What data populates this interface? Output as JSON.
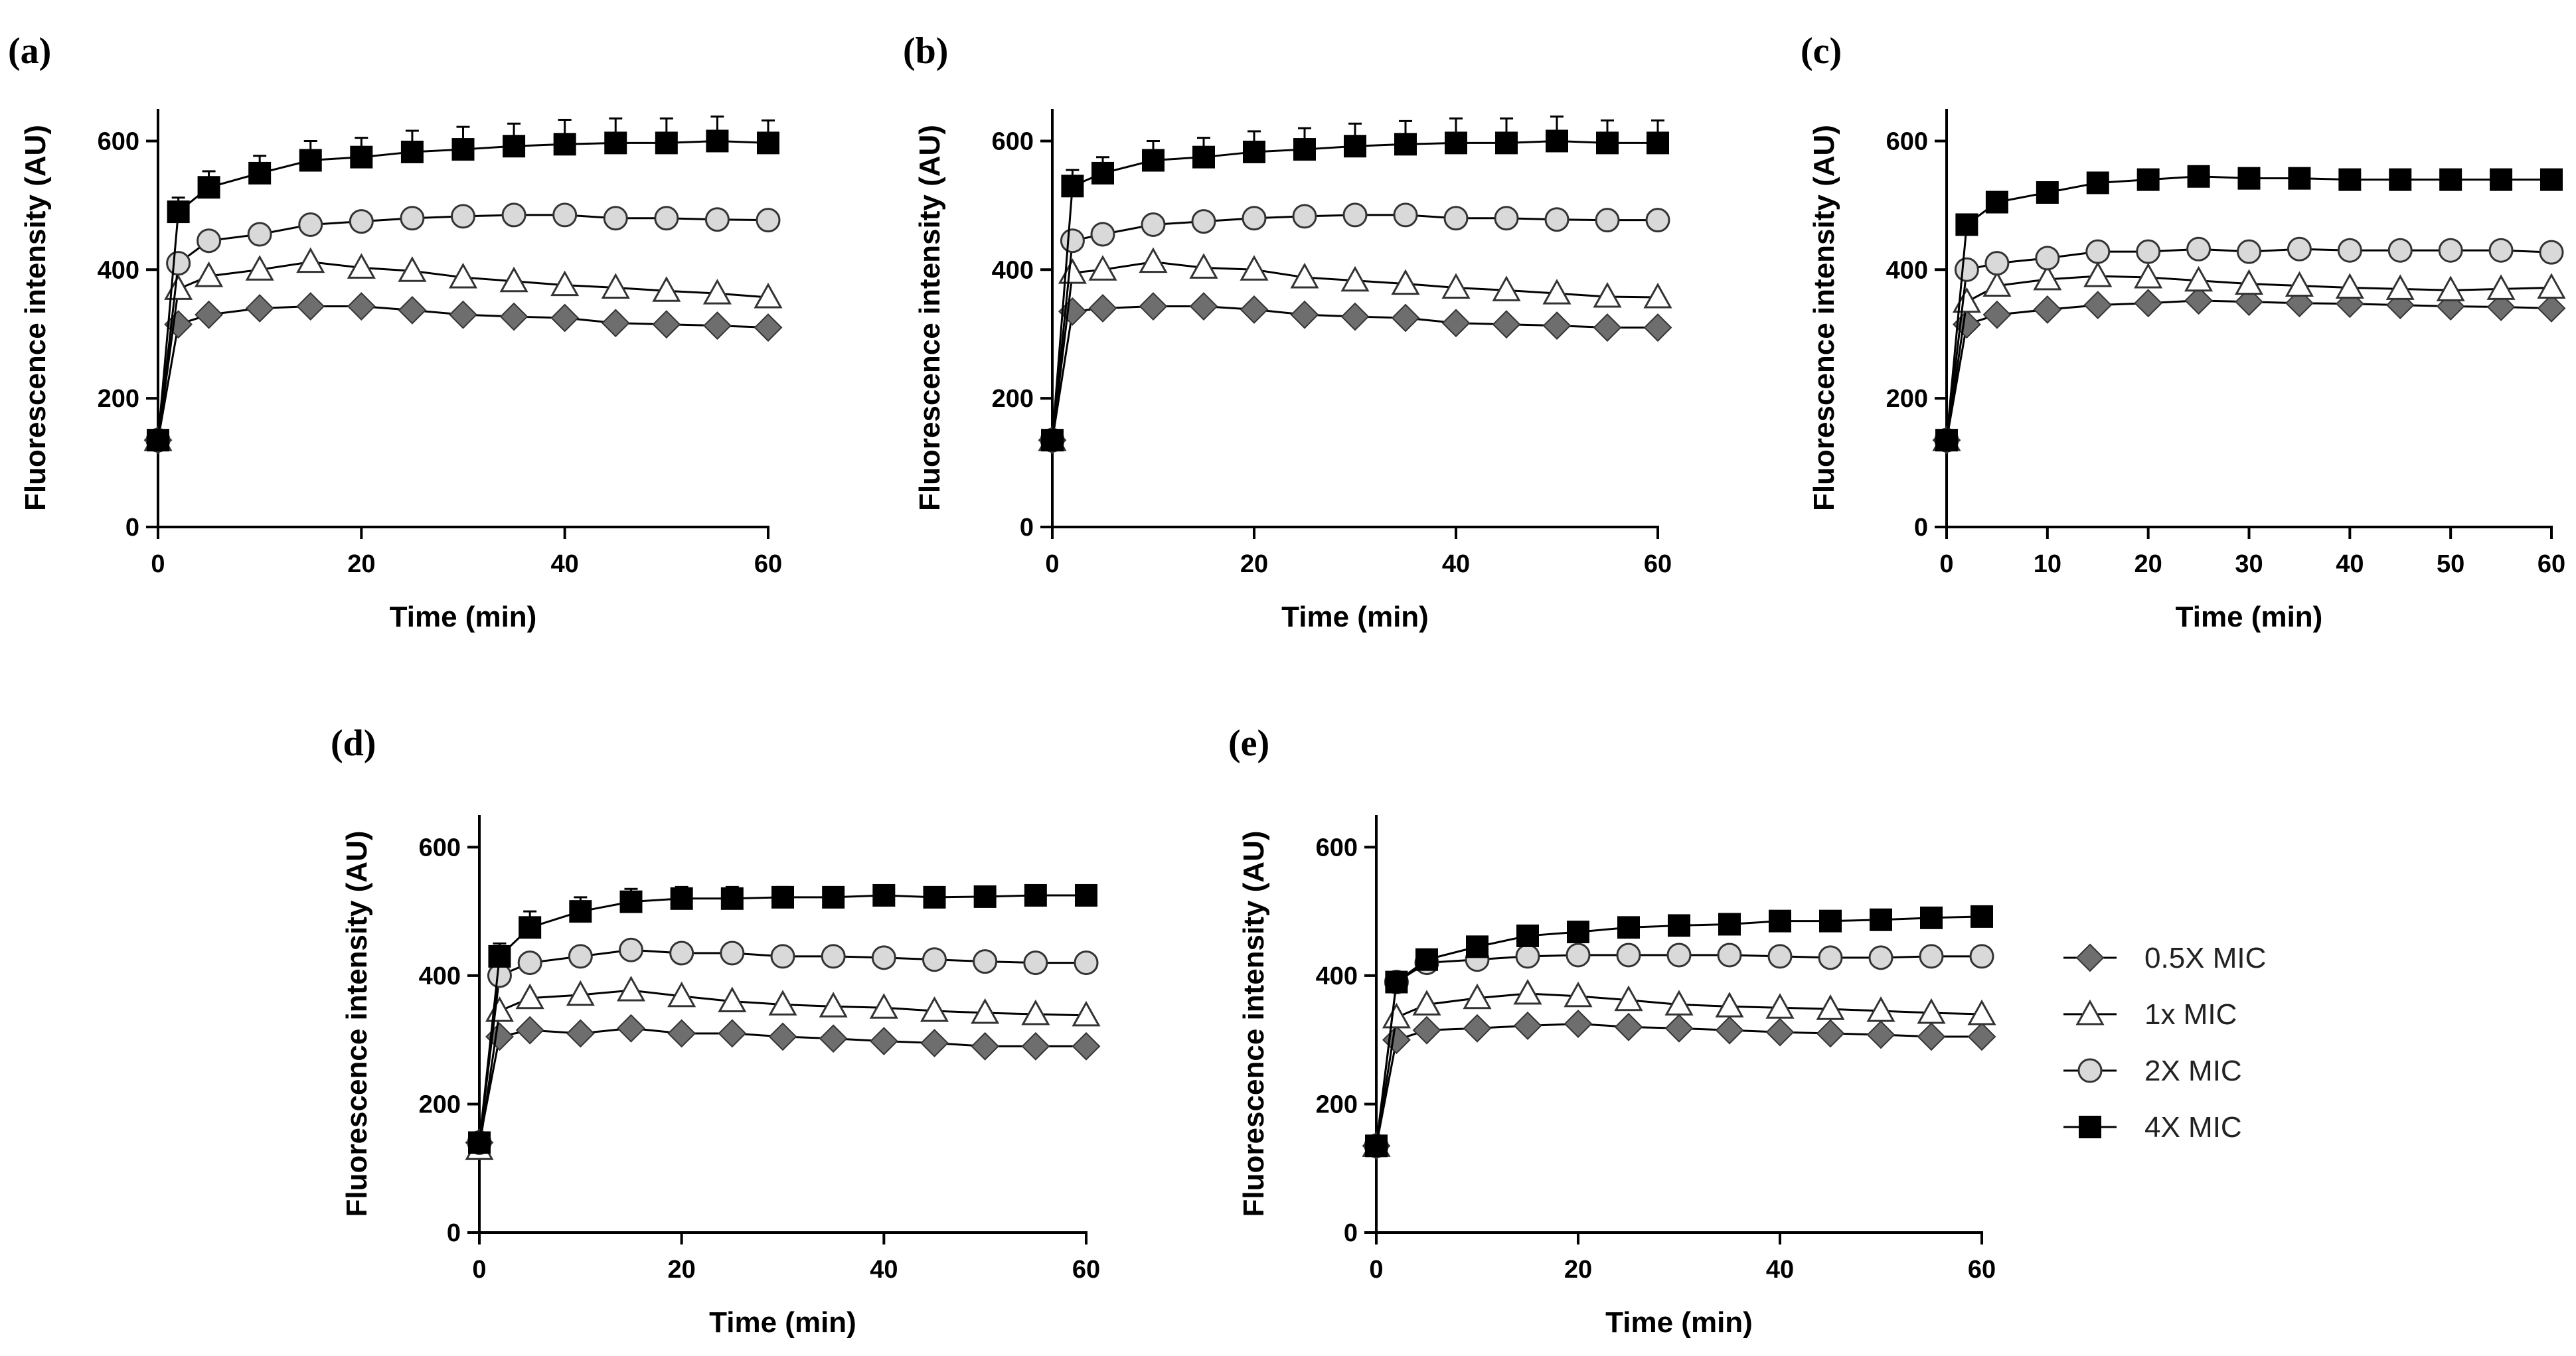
{
  "chart_data": [
    {
      "panel": "(a)",
      "type": "line",
      "xlabel": "Time (min)",
      "ylabel": "Fluorescence intensity (AU)",
      "xlim": [
        0,
        60
      ],
      "ylim": [
        0,
        650
      ],
      "xticks": [
        0,
        20,
        40,
        60
      ],
      "yticks": [
        0,
        200,
        400,
        600
      ],
      "x": [
        0,
        2,
        5,
        10,
        15,
        20,
        25,
        30,
        35,
        40,
        45,
        50,
        55,
        60
      ],
      "series": [
        {
          "name": "0.5X MIC",
          "values": [
            135,
            315,
            330,
            340,
            343,
            343,
            337,
            330,
            327,
            325,
            317,
            315,
            313,
            310
          ]
        },
        {
          "name": "1x MIC",
          "values": [
            135,
            370,
            390,
            400,
            412,
            403,
            398,
            388,
            382,
            376,
            372,
            367,
            363,
            357
          ]
        },
        {
          "name": "2X MIC",
          "values": [
            135,
            410,
            445,
            455,
            470,
            475,
            480,
            483,
            485,
            485,
            480,
            480,
            478,
            477
          ]
        },
        {
          "name": "4X MIC",
          "values": [
            135,
            490,
            528,
            550,
            570,
            575,
            583,
            587,
            592,
            595,
            597,
            597,
            600,
            597
          ],
          "errors": [
            0,
            22,
            25,
            27,
            30,
            30,
            33,
            35,
            35,
            38,
            38,
            38,
            38,
            35
          ]
        }
      ]
    },
    {
      "panel": "(b)",
      "type": "line",
      "xlabel": "Time (min)",
      "ylabel": "Fluorescence intensity (AU)",
      "xlim": [
        0,
        60
      ],
      "ylim": [
        0,
        650
      ],
      "xticks": [
        0,
        20,
        40,
        60
      ],
      "yticks": [
        0,
        200,
        400,
        600
      ],
      "x": [
        0,
        2,
        5,
        10,
        15,
        20,
        25,
        30,
        35,
        40,
        45,
        50,
        55,
        60
      ],
      "series": [
        {
          "name": "0.5X MIC",
          "values": [
            135,
            335,
            340,
            343,
            343,
            338,
            330,
            327,
            325,
            317,
            315,
            313,
            310,
            310
          ]
        },
        {
          "name": "1x MIC",
          "values": [
            135,
            395,
            400,
            412,
            403,
            400,
            388,
            383,
            378,
            372,
            368,
            363,
            358,
            357
          ]
        },
        {
          "name": "2X MIC",
          "values": [
            135,
            445,
            455,
            470,
            475,
            480,
            483,
            485,
            485,
            480,
            480,
            478,
            477,
            477
          ]
        },
        {
          "name": "4X MIC",
          "values": [
            135,
            530,
            550,
            570,
            575,
            583,
            587,
            592,
            595,
            597,
            597,
            600,
            597,
            597
          ],
          "errors": [
            0,
            25,
            25,
            30,
            30,
            32,
            33,
            35,
            36,
            38,
            38,
            38,
            35,
            35
          ]
        }
      ]
    },
    {
      "panel": "(c)",
      "type": "line",
      "xlabel": "Time (min)",
      "ylabel": "Fluorescence intensity (AU)",
      "xlim": [
        0,
        60
      ],
      "ylim": [
        0,
        650
      ],
      "xticks": [
        0,
        10,
        20,
        30,
        40,
        50,
        60
      ],
      "yticks": [
        0,
        200,
        400,
        600
      ],
      "x": [
        0,
        2,
        5,
        10,
        15,
        20,
        25,
        30,
        35,
        40,
        45,
        50,
        55,
        60
      ],
      "series": [
        {
          "name": "0.5X MIC",
          "values": [
            135,
            315,
            330,
            338,
            345,
            348,
            352,
            350,
            348,
            347,
            345,
            343,
            342,
            340
          ]
        },
        {
          "name": "1x MIC",
          "values": [
            135,
            350,
            375,
            385,
            390,
            388,
            383,
            378,
            375,
            372,
            370,
            368,
            370,
            372
          ]
        },
        {
          "name": "2X MIC",
          "values": [
            135,
            400,
            410,
            418,
            428,
            428,
            432,
            428,
            432,
            430,
            430,
            430,
            430,
            427
          ]
        },
        {
          "name": "4X MIC",
          "values": [
            135,
            470,
            505,
            520,
            535,
            540,
            545,
            542,
            542,
            540,
            540,
            540,
            540,
            540
          ],
          "errors": [
            0,
            10,
            8,
            8,
            8,
            6,
            6,
            6,
            6,
            6,
            6,
            6,
            6,
            6
          ]
        }
      ]
    },
    {
      "panel": "(d)",
      "type": "line",
      "xlabel": "Time (min)",
      "ylabel": "Fluorescence intensity (AU)",
      "xlim": [
        0,
        60
      ],
      "ylim": [
        0,
        650
      ],
      "xticks": [
        0,
        20,
        40,
        60
      ],
      "yticks": [
        0,
        200,
        400,
        600
      ],
      "x": [
        0,
        2,
        5,
        10,
        15,
        20,
        25,
        30,
        35,
        40,
        45,
        50,
        55,
        60
      ],
      "series": [
        {
          "name": "0.5X MIC",
          "values": [
            140,
            305,
            315,
            310,
            318,
            310,
            310,
            305,
            302,
            298,
            295,
            290,
            290,
            290
          ]
        },
        {
          "name": "1x MIC",
          "values": [
            130,
            345,
            365,
            370,
            377,
            368,
            360,
            355,
            352,
            350,
            345,
            342,
            340,
            338
          ]
        },
        {
          "name": "2X MIC",
          "values": [
            140,
            400,
            420,
            430,
            440,
            435,
            435,
            430,
            430,
            428,
            425,
            422,
            420,
            420
          ]
        },
        {
          "name": "4X MIC",
          "values": [
            140,
            430,
            475,
            500,
            515,
            520,
            520,
            522,
            522,
            525,
            522,
            523,
            525,
            525
          ],
          "errors": [
            0,
            20,
            25,
            22,
            20,
            18,
            18,
            16,
            15,
            15,
            15,
            15,
            15,
            10
          ]
        }
      ]
    },
    {
      "panel": "(e)",
      "type": "line",
      "xlabel": "Time (min)",
      "ylabel": "Fluorescence intensity (AU)",
      "xlim": [
        0,
        60
      ],
      "ylim": [
        0,
        650
      ],
      "xticks": [
        0,
        20,
        40,
        60
      ],
      "yticks": [
        0,
        200,
        400,
        600
      ],
      "x": [
        0,
        2,
        5,
        10,
        15,
        20,
        25,
        30,
        35,
        40,
        45,
        50,
        55,
        60
      ],
      "series": [
        {
          "name": "0.5X MIC",
          "values": [
            135,
            300,
            315,
            318,
            322,
            325,
            320,
            318,
            315,
            312,
            310,
            308,
            305,
            305
          ]
        },
        {
          "name": "1x MIC",
          "values": [
            135,
            335,
            355,
            365,
            372,
            368,
            362,
            355,
            352,
            350,
            348,
            345,
            342,
            340
          ]
        },
        {
          "name": "2X MIC",
          "values": [
            135,
            390,
            420,
            425,
            430,
            432,
            432,
            432,
            432,
            430,
            428,
            428,
            430,
            430
          ]
        },
        {
          "name": "4X MIC",
          "values": [
            135,
            390,
            425,
            445,
            462,
            468,
            475,
            478,
            480,
            485,
            485,
            487,
            490,
            492
          ],
          "errors": [
            0,
            15,
            14,
            14,
            13,
            12,
            14,
            14,
            15,
            15,
            15,
            15,
            13,
            10
          ]
        }
      ]
    }
  ],
  "legend": {
    "items": [
      {
        "label": "0.5X MIC",
        "marker": "diamond"
      },
      {
        "label": "1x MIC",
        "marker": "triangle"
      },
      {
        "label": "2X MIC",
        "marker": "circle"
      },
      {
        "label": "4X MIC",
        "marker": "square"
      }
    ]
  },
  "colors": {
    "0.5X MIC": "#6e6e6e",
    "1x MIC": "#ffffff",
    "2X MIC": "#d9d9d9",
    "4X MIC": "#000000",
    "line": "#000000"
  }
}
